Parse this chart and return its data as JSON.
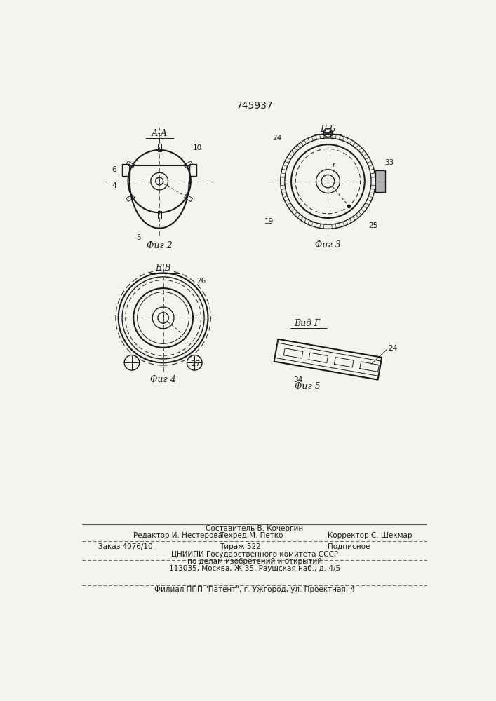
{
  "patent_number": "745937",
  "bg_color": "#f5f3ef",
  "line_color": "#1a1a1a",
  "fig2_label": "А-А",
  "fig3_label": "Б-Б",
  "fig4_label": "В-В",
  "fig5_label": "Вид Г",
  "caption2": "Фиг 2",
  "caption3": "Фиг 3",
  "caption4": "Фиг 4",
  "caption5": "Фиг 5",
  "footer_line1": "Составитель В. Кочергин",
  "footer_line2_left": "Редактор И. Нестерова",
  "footer_line2_mid": "Техред М. Петко",
  "footer_line2_right": "Корректор С. Шекмар",
  "footer_line3_left": "Заказ 4076/10",
  "footer_line3_mid": "Тираж 522",
  "footer_line3_right": "Подписное",
  "footer_line4": "ЦНИИПИ Государственного комитета СССР",
  "footer_line5": "по делам изобретений и открытий",
  "footer_line6": "113035, Москва, Ж-35, Раушская наб., д. 4/5",
  "footer_line7": "Филиал ППП \"Патент\", г. Ужгород, ул. Проектная, 4"
}
